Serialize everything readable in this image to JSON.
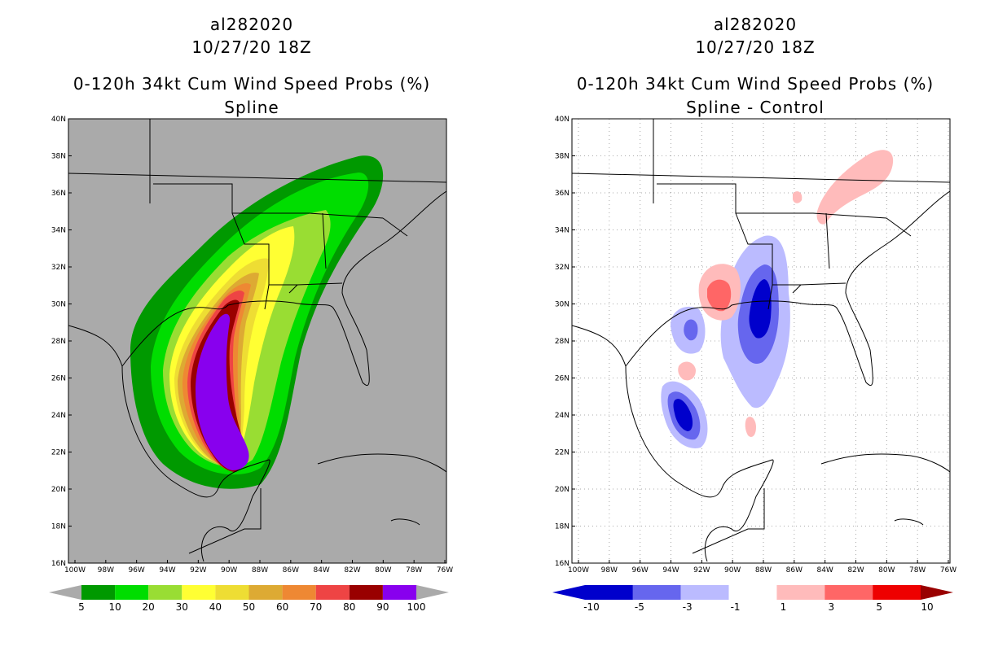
{
  "panels": [
    {
      "storm_id": "al282020",
      "datetime": "10/27/20 18Z",
      "product": "0-120h 34kt Cum Wind Speed Probs (%)",
      "subtitle": "Spline",
      "colorbar": {
        "labels": [
          "5",
          "10",
          "20",
          "30",
          "40",
          "50",
          "60",
          "70",
          "80",
          "90",
          "100"
        ],
        "colors": [
          "#009900",
          "#00dd00",
          "#99dd33",
          "#ffff33",
          "#eedd33",
          "#ddaa33",
          "#ee8833",
          "#ee4444",
          "#990000",
          "#8800ee"
        ]
      }
    },
    {
      "storm_id": "al282020",
      "datetime": "10/27/20 18Z",
      "product": "0-120h 34kt Cum Wind Speed Probs (%)",
      "subtitle": "Spline - Control",
      "colorbar": {
        "labels": [
          "-10",
          "-5",
          "-3",
          "-1",
          "1",
          "3",
          "5",
          "10"
        ],
        "colors": [
          "#0000cc",
          "#6666ee",
          "#bbbbff",
          "#ffffff",
          "#ffbbbb",
          "#ff6666",
          "#ee0000"
        ]
      }
    }
  ],
  "axes": {
    "lat_labels": [
      "40N",
      "38N",
      "36N",
      "34N",
      "32N",
      "30N",
      "28N",
      "26N",
      "24N",
      "22N",
      "20N",
      "18N",
      "16N"
    ],
    "lon_labels": [
      "100W",
      "98W",
      "96W",
      "94W",
      "92W",
      "90W",
      "88W",
      "86W",
      "84W",
      "82W",
      "80W",
      "78W",
      "76W"
    ]
  },
  "colors": {
    "land_ocean_bg_left": "#aaaaaa",
    "grid": "#aaaaaa"
  }
}
